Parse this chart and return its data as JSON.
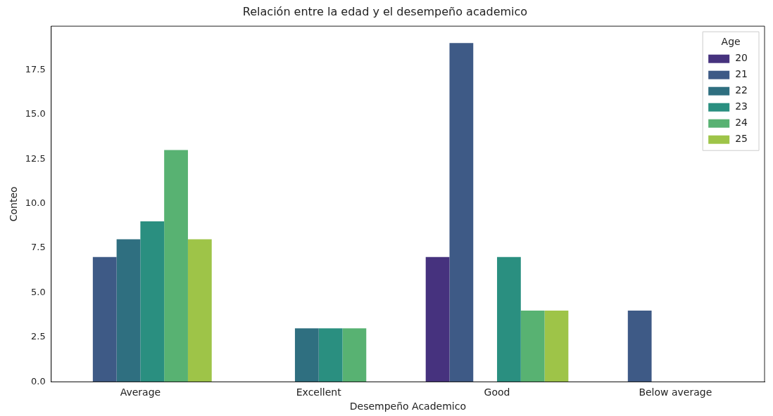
{
  "chart_data": {
    "type": "bar",
    "title": "Relación entre la edad y el desempeño academico",
    "xlabel": "Desempeño Academico",
    "ylabel": "Conteo",
    "legend_title": "Age",
    "legend": "top right",
    "grid": false,
    "categories": [
      "Average",
      "Excellent",
      "Good",
      "Below average"
    ],
    "series": [
      {
        "name": "20",
        "color": "#46327e",
        "values": [
          null,
          null,
          7,
          null
        ]
      },
      {
        "name": "21",
        "color": "#3e5a86",
        "values": [
          7,
          null,
          19,
          4
        ]
      },
      {
        "name": "22",
        "color": "#2f6f80",
        "values": [
          8,
          3,
          null,
          null
        ]
      },
      {
        "name": "23",
        "color": "#2a8f80",
        "values": [
          9,
          3,
          7,
          null
        ]
      },
      {
        "name": "24",
        "color": "#58b272",
        "values": [
          13,
          3,
          4,
          null
        ]
      },
      {
        "name": "25",
        "color": "#9ec448",
        "values": [
          8,
          null,
          4,
          null
        ]
      }
    ],
    "ylim": [
      0,
      19.95
    ],
    "yticks": [
      {
        "value": 0,
        "label": "0.0"
      },
      {
        "value": 2.5,
        "label": "2.5"
      },
      {
        "value": 5,
        "label": "5.0"
      },
      {
        "value": 7.5,
        "label": "7.5"
      },
      {
        "value": 10,
        "label": "10.0"
      },
      {
        "value": 12.5,
        "label": "12.5"
      },
      {
        "value": 15,
        "label": "15.0"
      },
      {
        "value": 17.5,
        "label": "17.5"
      }
    ]
  }
}
